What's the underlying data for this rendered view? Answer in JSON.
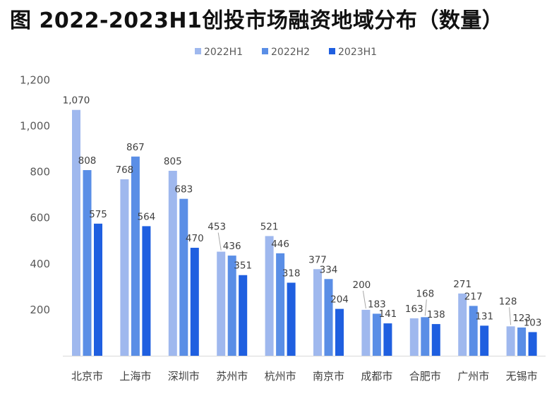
{
  "title": "图 2022-2023H1创投市场融资地域分布（数量）",
  "chart_data": {
    "type": "bar",
    "title": "图 2022-2023H1创投市场融资地域分布（数量）",
    "xlabel": "",
    "ylabel": "",
    "categories": [
      "北京市",
      "上海市",
      "深圳市",
      "苏州市",
      "杭州市",
      "南京市",
      "成都市",
      "合肥市",
      "广州市",
      "无锡市"
    ],
    "series": [
      {
        "name": "2022H1",
        "color": "#9fb8ee",
        "values": [
          1070,
          768,
          805,
          453,
          521,
          377,
          200,
          163,
          271,
          128
        ]
      },
      {
        "name": "2022H2",
        "color": "#5a8ee6",
        "values": [
          808,
          867,
          683,
          436,
          446,
          334,
          183,
          168,
          217,
          123
        ]
      },
      {
        "name": "2023H1",
        "color": "#1f5fe0",
        "values": [
          575,
          564,
          470,
          351,
          318,
          204,
          141,
          138,
          131,
          103
        ]
      }
    ],
    "data_labels": [
      [
        "1,070",
        "768",
        "805",
        "453",
        "521",
        "377",
        "200",
        "163",
        "271",
        "128"
      ],
      [
        "808",
        "867",
        "683",
        "436",
        "446",
        "334",
        "183",
        "168",
        "217",
        "123"
      ],
      [
        "575",
        "564",
        "470",
        "351",
        "318",
        "204",
        "141",
        "138",
        "131",
        "103"
      ]
    ],
    "yticks": [
      "200",
      "400",
      "600",
      "800",
      "1,000",
      "1,200"
    ],
    "ylim": [
      0,
      1200
    ],
    "legend_position": "top-center",
    "grid": false
  }
}
